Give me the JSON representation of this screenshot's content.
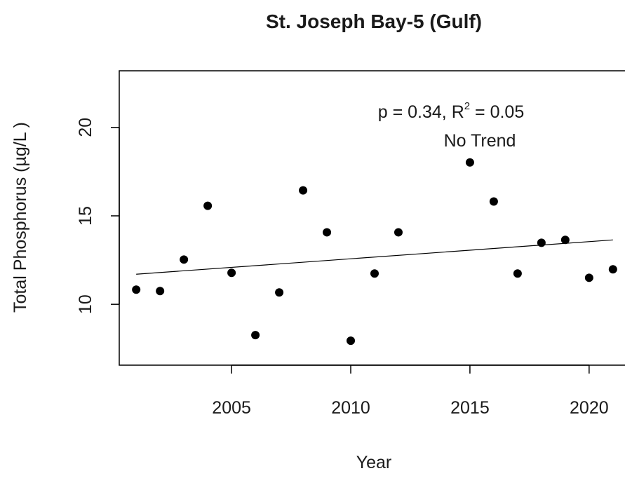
{
  "chart_data": {
    "type": "scatter",
    "title": "St. Joseph Bay-5 (Gulf)",
    "x_label": "Year",
    "y_label": "Total Phosphorus (µg/L )",
    "x": [
      2001,
      2002,
      2003,
      2004,
      2005,
      2006,
      2007,
      2008,
      2009,
      2010,
      2011,
      2012,
      2015,
      2016,
      2017,
      2018,
      2019,
      2020,
      2021
    ],
    "values": [
      10.83,
      10.75,
      12.53,
      15.57,
      11.78,
      8.26,
      10.67,
      16.44,
      14.07,
      7.94,
      11.74,
      14.07,
      18.02,
      15.81,
      11.74,
      13.48,
      13.64,
      11.5,
      11.98
    ],
    "color": "#000000",
    "trend_line": {
      "x": [
        2001,
        2021
      ],
      "values": [
        11.7,
        13.64
      ]
    },
    "annotation_parts": [
      "p = 0.34, R",
      "2",
      " = 0.05"
    ],
    "annotation_2": "No Trend",
    "xlim": [
      2000.2,
      2021.8
    ],
    "xticks": [
      2005,
      2010,
      2015,
      2020
    ],
    "ylim": [
      6.56,
      23.2
    ],
    "yticks": [
      10,
      15,
      20
    ]
  }
}
